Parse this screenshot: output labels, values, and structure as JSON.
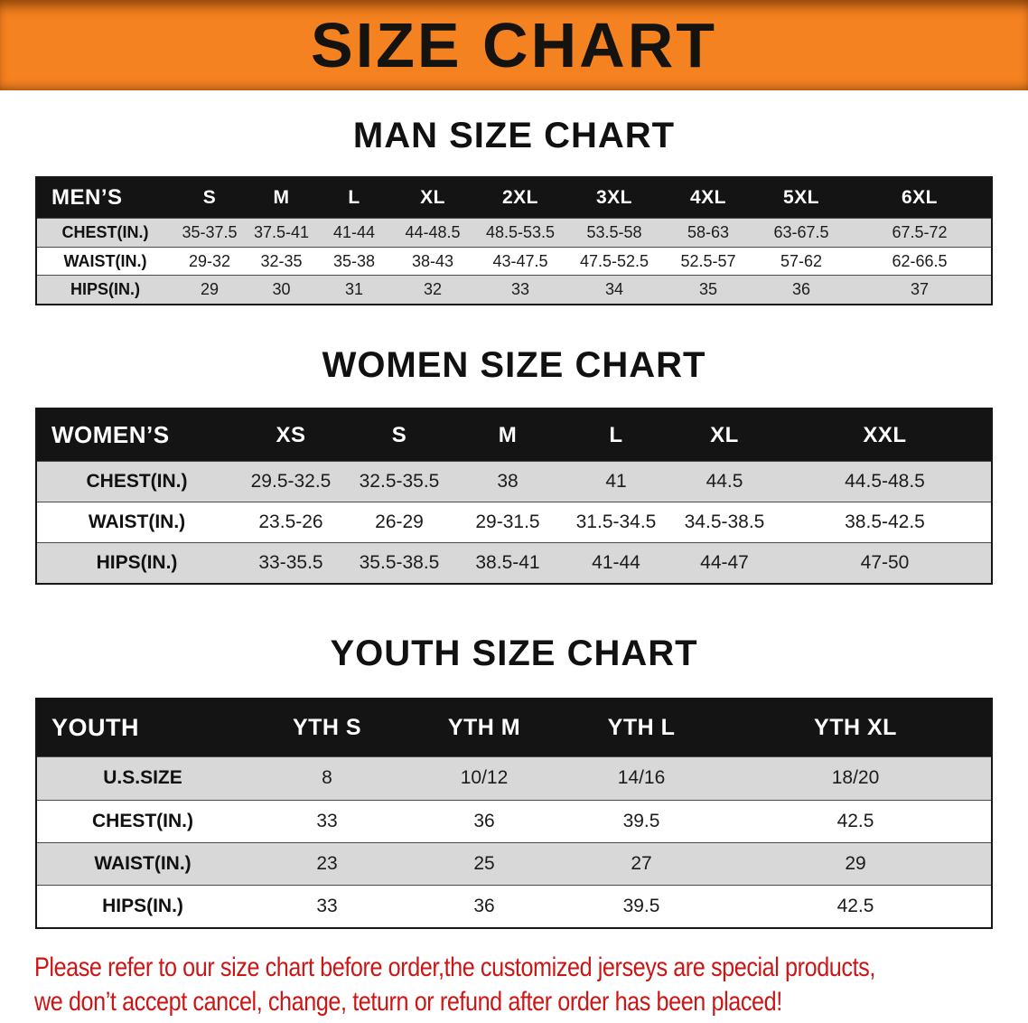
{
  "colors": {
    "banner_bg": "#f58220",
    "table_header_bg": "#141414",
    "row_shade": "#d8d8d8",
    "notice_red": "#cc1616",
    "heading_black": "#111111"
  },
  "banner": {
    "title": "SIZE CHART"
  },
  "men": {
    "heading": "MAN SIZE CHART",
    "table": {
      "header": [
        "MEN’S",
        "S",
        "M",
        "L",
        "XL",
        "2XL",
        "3XL",
        "4XL",
        "5XL",
        "6XL"
      ],
      "rows": [
        [
          "CHEST(IN.)",
          "35-37.5",
          "37.5-41",
          "41-44",
          "44-48.5",
          "48.5-53.5",
          "53.5-58",
          "58-63",
          "63-67.5",
          "67.5-72"
        ],
        [
          "WAIST(IN.)",
          "29-32",
          "32-35",
          "35-38",
          "38-43",
          "43-47.5",
          "47.5-52.5",
          "52.5-57",
          "57-62",
          "62-66.5"
        ],
        [
          "HIPS(IN.)",
          "29",
          "30",
          "31",
          "32",
          "33",
          "34",
          "35",
          "36",
          "37"
        ]
      ]
    }
  },
  "women": {
    "heading": "WOMEN SIZE CHART",
    "table": {
      "header": [
        "WOMEN’S",
        "XS",
        "S",
        "M",
        "L",
        "XL",
        "XXL"
      ],
      "rows": [
        [
          "CHEST(IN.)",
          "29.5-32.5",
          "32.5-35.5",
          "38",
          "41",
          "44.5",
          "44.5-48.5"
        ],
        [
          "WAIST(IN.)",
          "23.5-26",
          "26-29",
          "29-31.5",
          "31.5-34.5",
          "34.5-38.5",
          "38.5-42.5"
        ],
        [
          "HIPS(IN.)",
          "33-35.5",
          "35.5-38.5",
          "38.5-41",
          "41-44",
          "44-47",
          "47-50"
        ]
      ]
    }
  },
  "youth": {
    "heading": "YOUTH SIZE CHART",
    "table": {
      "header": [
        "YOUTH",
        "YTH S",
        "YTH M",
        "YTH L",
        "YTH XL"
      ],
      "rows": [
        [
          "U.S.SIZE",
          "8",
          "10/12",
          "14/16",
          "18/20"
        ],
        [
          "CHEST(IN.)",
          "33",
          "36",
          "39.5",
          "42.5"
        ],
        [
          "WAIST(IN.)",
          "23",
          "25",
          "27",
          "29"
        ],
        [
          "HIPS(IN.)",
          "33",
          "36",
          "39.5",
          "42.5"
        ]
      ]
    }
  },
  "notice": {
    "line1": "Please refer to our size chart before order,the customized jerseys are special products,",
    "line2": "we don’t accept cancel, change, teturn or refund after order has been placed!"
  }
}
